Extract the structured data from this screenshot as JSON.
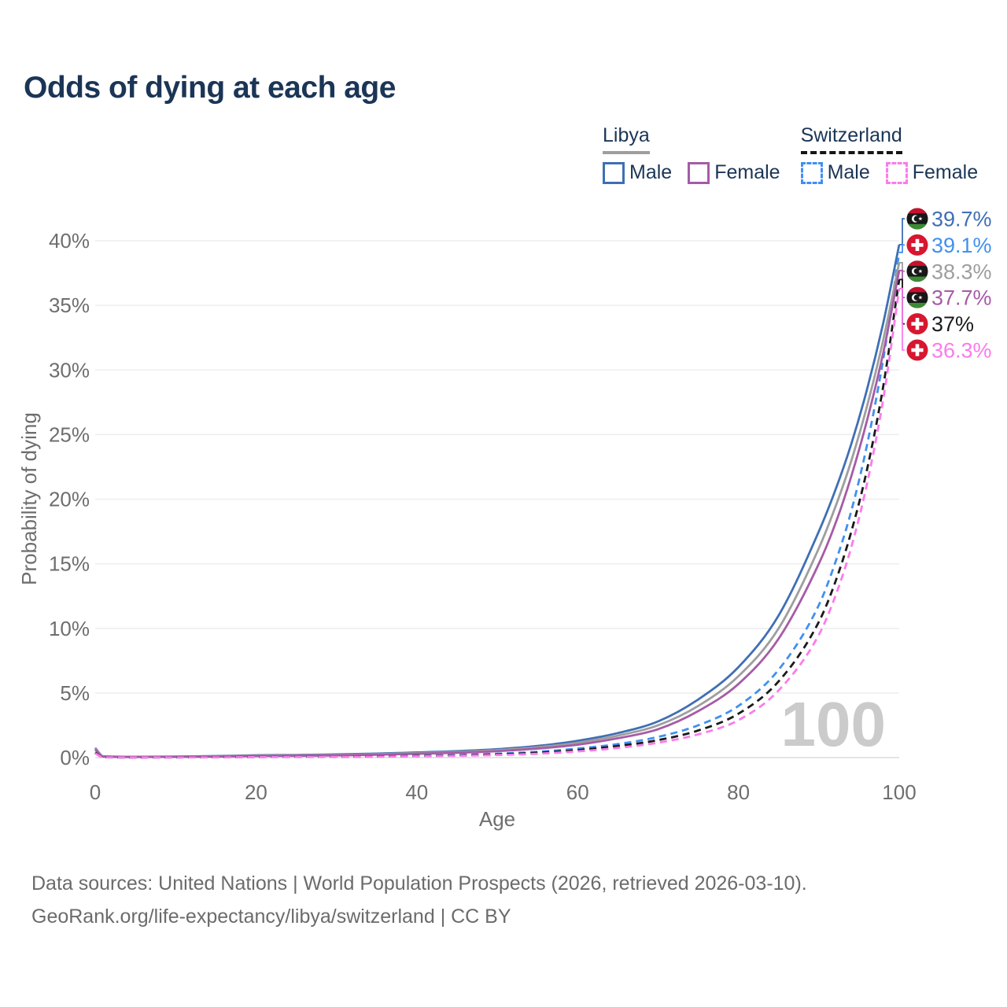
{
  "title": "Odds of dying at each age",
  "watermark": "100",
  "legend": {
    "groups": [
      {
        "country": "Libya",
        "line_style": "solid",
        "line_color": "#9e9e9e",
        "items": [
          {
            "label": "Male",
            "color": "#3f6fb5",
            "box_style": "solid"
          },
          {
            "label": "Female",
            "color": "#a65ba6",
            "box_style": "solid"
          }
        ]
      },
      {
        "country": "Switzerland",
        "line_style": "dashed",
        "line_color": "#151515",
        "items": [
          {
            "label": "Male",
            "color": "#4190ef",
            "box_style": "dashed"
          },
          {
            "label": "Female",
            "color": "#fb7bec",
            "box_style": "dashed"
          }
        ]
      }
    ]
  },
  "footer": {
    "line1": "Data sources: United Nations | World Population Prospects (2026, retrieved 2026-03-10).",
    "line2": "GeoRank.org/life-expectancy/libya/switzerland | CC BY"
  },
  "chart_data": {
    "type": "line",
    "title": "Odds of dying at each age",
    "xlabel": "Age",
    "ylabel": "Probability of dying",
    "xlim": [
      0,
      100
    ],
    "ylim": [
      0,
      42
    ],
    "x_ticks": [
      0,
      20,
      40,
      60,
      80,
      100
    ],
    "y_ticks": [
      0,
      5,
      10,
      15,
      20,
      25,
      30,
      35,
      40
    ],
    "y_tick_suffix": "%",
    "grid": true,
    "legend_position": "top-right",
    "x": [
      0,
      1,
      5,
      10,
      15,
      20,
      25,
      30,
      35,
      40,
      45,
      50,
      55,
      60,
      65,
      70,
      75,
      80,
      85,
      90,
      92,
      94,
      96,
      98,
      100
    ],
    "series": [
      {
        "name": "Libya Male",
        "country": "Libya",
        "sex": "Male",
        "color": "#3f6fb5",
        "line_style": "solid",
        "end_label": "39.7%",
        "values": [
          0.75,
          0.1,
          0.07,
          0.08,
          0.12,
          0.18,
          0.21,
          0.25,
          0.31,
          0.4,
          0.5,
          0.65,
          0.9,
          1.3,
          1.9,
          2.8,
          4.5,
          7.0,
          11.0,
          17.5,
          20.6,
          24.2,
          28.5,
          33.6,
          39.7
        ]
      },
      {
        "name": "Switzerland Male",
        "country": "Switzerland",
        "sex": "Male",
        "color": "#4190ef",
        "line_style": "dashed",
        "end_label": "39.1%",
        "values": [
          0.4,
          0.03,
          0.02,
          0.02,
          0.04,
          0.07,
          0.08,
          0.09,
          0.11,
          0.15,
          0.2,
          0.3,
          0.45,
          0.7,
          1.05,
          1.6,
          2.5,
          4.0,
          6.8,
          11.8,
          15.0,
          19.0,
          24.2,
          30.8,
          39.1
        ]
      },
      {
        "name": "Libya Both sexes",
        "country": "Libya",
        "sex": "Both",
        "color": "#9e9e9e",
        "line_style": "solid",
        "end_label": "38.3%",
        "values": [
          0.7,
          0.09,
          0.06,
          0.07,
          0.1,
          0.15,
          0.18,
          0.21,
          0.27,
          0.35,
          0.44,
          0.58,
          0.8,
          1.15,
          1.7,
          2.5,
          4.0,
          6.3,
          10.0,
          16.2,
          19.3,
          22.9,
          27.2,
          32.3,
          38.3
        ]
      },
      {
        "name": "Libya Female",
        "country": "Libya",
        "sex": "Female",
        "color": "#a65ba6",
        "line_style": "solid",
        "end_label": "37.7%",
        "values": [
          0.62,
          0.08,
          0.05,
          0.06,
          0.08,
          0.12,
          0.14,
          0.17,
          0.22,
          0.3,
          0.38,
          0.5,
          0.7,
          1.0,
          1.5,
          2.2,
          3.6,
          5.7,
          9.2,
          15.0,
          18.0,
          21.7,
          26.1,
          31.3,
          37.7
        ]
      },
      {
        "name": "Switzerland Both sexes",
        "country": "Switzerland",
        "sex": "Both",
        "color": "#1a1a1a",
        "line_style": "dashed",
        "end_label": "37%",
        "values": [
          0.37,
          0.025,
          0.015,
          0.02,
          0.03,
          0.05,
          0.06,
          0.07,
          0.09,
          0.12,
          0.17,
          0.25,
          0.38,
          0.58,
          0.9,
          1.35,
          2.1,
          3.4,
          5.9,
          10.5,
          13.5,
          17.4,
          22.3,
          28.7,
          37.0
        ]
      },
      {
        "name": "Switzerland Female",
        "country": "Switzerland",
        "sex": "Female",
        "color": "#fb7bec",
        "line_style": "dashed",
        "end_label": "36.3%",
        "values": [
          0.33,
          0.02,
          0.01,
          0.015,
          0.02,
          0.04,
          0.05,
          0.06,
          0.07,
          0.1,
          0.14,
          0.2,
          0.3,
          0.48,
          0.75,
          1.15,
          1.8,
          2.9,
          5.2,
          9.5,
          12.4,
          16.2,
          21.2,
          27.7,
          36.3
        ]
      }
    ],
    "flag_colors": {
      "libya_red": "#c8102e",
      "libya_black": "#181818",
      "libya_green": "#3d8a34",
      "swiss_red": "#d7162f",
      "white": "#ffffff"
    }
  }
}
